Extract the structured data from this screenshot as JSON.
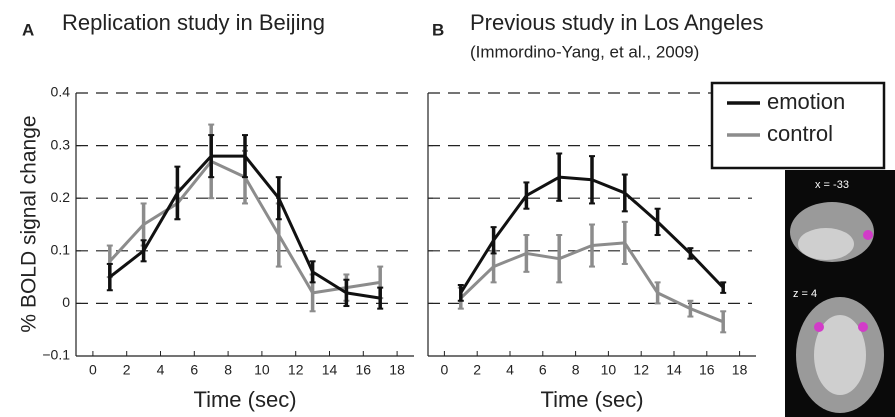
{
  "chart_data": [
    {
      "type": "line",
      "panel": "A",
      "title": "Replication study in Beijing",
      "xlabel": "Time (sec)",
      "ylabel": "% BOLD signal change",
      "x": [
        1,
        3,
        5,
        7,
        9,
        11,
        13,
        15,
        17
      ],
      "series": [
        {
          "color": "#111111",
          "values": [
            0.05,
            0.1,
            0.21,
            0.28,
            0.28,
            0.2,
            0.06,
            0.02,
            0.01
          ],
          "errors": [
            0.025,
            0.02,
            0.05,
            0.04,
            0.04,
            0.04,
            0.02,
            0.025,
            0.02
          ]
        },
        {
          "color": "#8c8c8c",
          "values": [
            0.08,
            0.15,
            0.19,
            0.27,
            0.24,
            0.13,
            0.02,
            0.03,
            0.04
          ],
          "errors": [
            0.03,
            0.04,
            0.03,
            0.07,
            0.05,
            0.06,
            0.035,
            0.025,
            0.03
          ]
        }
      ],
      "xlim": [
        -1,
        19
      ],
      "xticks": [
        0,
        2,
        4,
        6,
        8,
        10,
        12,
        14,
        16,
        18
      ],
      "ylim": [
        -0.1,
        0.4
      ],
      "yticks": [
        {
          "value": -0.1,
          "label": "−0.1"
        },
        0,
        0.1,
        0.2,
        0.3,
        0.4
      ],
      "grid": true
    },
    {
      "type": "line",
      "panel": "B",
      "title": "Previous study in Los Angeles",
      "subtitle": "(Immordino-Yang, et al., 2009)",
      "xlabel": "Time (sec)",
      "x": [
        1,
        3,
        5,
        7,
        9,
        11,
        13,
        15,
        17
      ],
      "series": [
        {
          "name": "emotion",
          "color": "#111111",
          "values": [
            0.02,
            0.12,
            0.205,
            0.24,
            0.235,
            0.21,
            0.155,
            0.095,
            0.03
          ],
          "errors": [
            0.015,
            0.025,
            0.025,
            0.045,
            0.045,
            0.035,
            0.025,
            0.01,
            0.01
          ]
        },
        {
          "name": "control",
          "color": "#8c8c8c",
          "values": [
            0.01,
            0.07,
            0.095,
            0.085,
            0.11,
            0.115,
            0.02,
            -0.01,
            -0.035
          ],
          "errors": [
            0.02,
            0.03,
            0.035,
            0.045,
            0.04,
            0.04,
            0.02,
            0.015,
            0.02
          ]
        }
      ],
      "xlim": [
        -1,
        19
      ],
      "xticks": [
        0,
        2,
        4,
        6,
        8,
        10,
        12,
        14,
        16,
        18
      ],
      "ylim": [
        -0.1,
        0.4
      ],
      "yticks": [
        -0.1,
        0,
        0.1,
        0.2,
        0.3,
        0.4
      ],
      "ytick_labels": false,
      "grid": true,
      "legend": "upper right"
    }
  ],
  "inset": {
    "labels": [
      "x = -33",
      "z = 4"
    ]
  }
}
